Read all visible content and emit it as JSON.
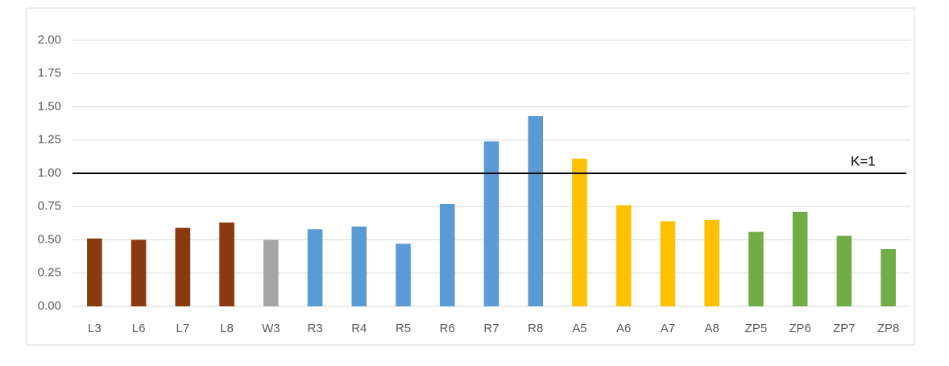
{
  "chart_data": {
    "type": "bar",
    "categories": [
      "L3",
      "L6",
      "L7",
      "L8",
      "W3",
      "R3",
      "R4",
      "R5",
      "R6",
      "R7",
      "R8",
      "A5",
      "A6",
      "A7",
      "A8",
      "ZP5",
      "ZP6",
      "ZP7",
      "ZP8"
    ],
    "values": [
      0.51,
      0.5,
      0.59,
      0.63,
      0.5,
      0.58,
      0.6,
      0.47,
      0.77,
      1.24,
      1.43,
      1.11,
      0.76,
      0.64,
      0.65,
      0.56,
      0.71,
      0.53,
      0.43
    ],
    "colors": [
      "#8b3a0f",
      "#8b3a0f",
      "#8b3a0f",
      "#8b3a0f",
      "#a5a5a5",
      "#5b9bd5",
      "#5b9bd5",
      "#5b9bd5",
      "#5b9bd5",
      "#5b9bd5",
      "#5b9bd5",
      "#ffc000",
      "#ffc000",
      "#ffc000",
      "#ffc000",
      "#70ad47",
      "#70ad47",
      "#70ad47",
      "#70ad47"
    ],
    "ylim": [
      0,
      2
    ],
    "yticks": [
      {
        "value": 0,
        "label": "0.00"
      },
      {
        "value": 0.25,
        "label": "0.25"
      },
      {
        "value": 0.5,
        "label": "0.50"
      },
      {
        "value": 0.75,
        "label": "0.75"
      },
      {
        "value": 1,
        "label": "1.00"
      },
      {
        "value": 1.25,
        "label": "1.25"
      },
      {
        "value": 1.5,
        "label": "1.50"
      },
      {
        "value": 1.75,
        "label": "1.75"
      },
      {
        "value": 2,
        "label": "2.00"
      }
    ],
    "grid": true,
    "reference_line": {
      "value": 1,
      "label": "K=1",
      "color": "#000000"
    }
  }
}
